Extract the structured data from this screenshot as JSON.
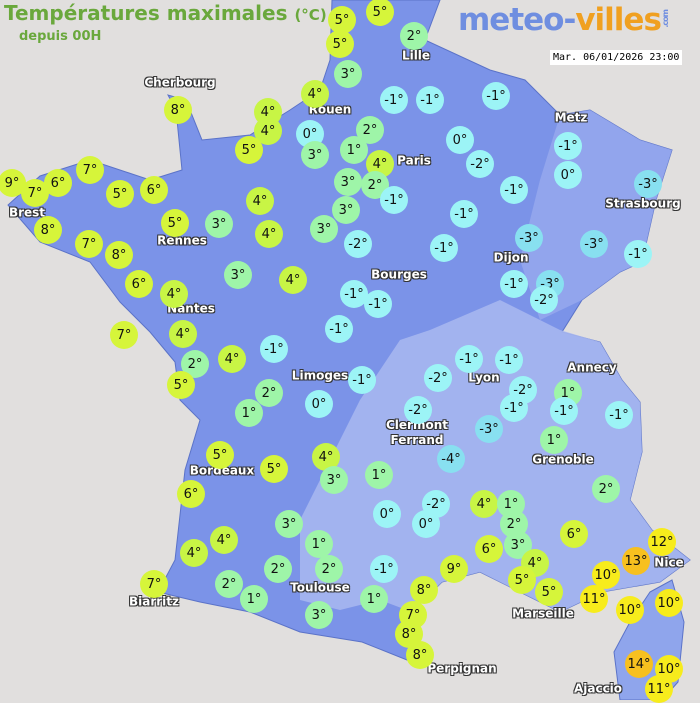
{
  "header": {
    "title": "Températures maximales",
    "unit": "(°C)",
    "subtitle": "depuis 00H",
    "date": "Mar. 06/01/2026 23:00"
  },
  "logo": {
    "part1": "meteo-",
    "part2": "villes",
    "part3": ".com"
  },
  "colors": {
    "background": "#e1dfde",
    "land": "#7b93e8",
    "highland": "#a9b9f0",
    "t_le_-3": "#88e0f0",
    "t_-2_0": "#9cf4f6",
    "t_1_3": "#9ef5a8",
    "t_4": "#c8f545",
    "t_5_9": "#d6f53a",
    "t_10_12": "#f7ec1c",
    "t_13_plus": "#f7c01f"
  },
  "cities": [
    "Cherbourg",
    "Lille",
    "Rouen",
    "Paris",
    "Metz",
    "Strasbourg",
    "Brest",
    "Rennes",
    "Dijon",
    "Bourges",
    "Nantes",
    "Limoges",
    "Annecy",
    "Lyon",
    "Clermont\nFerrand",
    "Grenoble",
    "Bordeaux",
    "Nice",
    "Toulouse",
    "Biarritz",
    "Marseille",
    "Perpignan",
    "Ajaccio"
  ],
  "temperatures": [
    "5°",
    "5°",
    "5°",
    "2°",
    "3°",
    "4°",
    "4°",
    "4°",
    "8°",
    "0°",
    "3°",
    "5°",
    "2°",
    "1°",
    "-1°",
    "-1°",
    "-1°",
    "4°",
    "2°",
    "3°",
    "3°",
    "-1°",
    "0°",
    "-2°",
    "-1°",
    "-1°",
    "0°",
    "-3°",
    "-1°",
    "-1°",
    "-3°",
    "-3°",
    "-1°",
    "-1°",
    "-3°",
    "-2°",
    "-2°",
    "-1°",
    "-1°",
    "-1°",
    "7°",
    "9°",
    "7°",
    "6°",
    "5°",
    "6°",
    "8°",
    "7°",
    "8°",
    "5°",
    "3°",
    "4°",
    "4°",
    "3°",
    "3°",
    "4°",
    "6°",
    "4°",
    "7°",
    "4°",
    "2°",
    "4°",
    "-1°",
    "5°",
    "2°",
    "1°",
    "0°",
    "-1°",
    "-2°",
    "-1°",
    "-1°",
    "-2°",
    "-1°",
    "1°",
    "-1°",
    "-1°",
    "-2°",
    "-3°",
    "-4°",
    "1°",
    "5°",
    "5°",
    "4°",
    "3°",
    "1°",
    "6°",
    "3°",
    "0°",
    "-2°",
    "0°",
    "4°",
    "1°",
    "2°",
    "3°",
    "6°",
    "6°",
    "2°",
    "4°",
    "4°",
    "1°",
    "2°",
    "2°",
    "2°",
    "1°",
    "7°",
    "3°",
    "-1°",
    "1°",
    "9°",
    "8°",
    "4°",
    "5°",
    "5°",
    "7°",
    "8°",
    "8°",
    "10°",
    "11°",
    "12°",
    "13°",
    "10°",
    "10°",
    "14°",
    "10°",
    "11°"
  ]
}
